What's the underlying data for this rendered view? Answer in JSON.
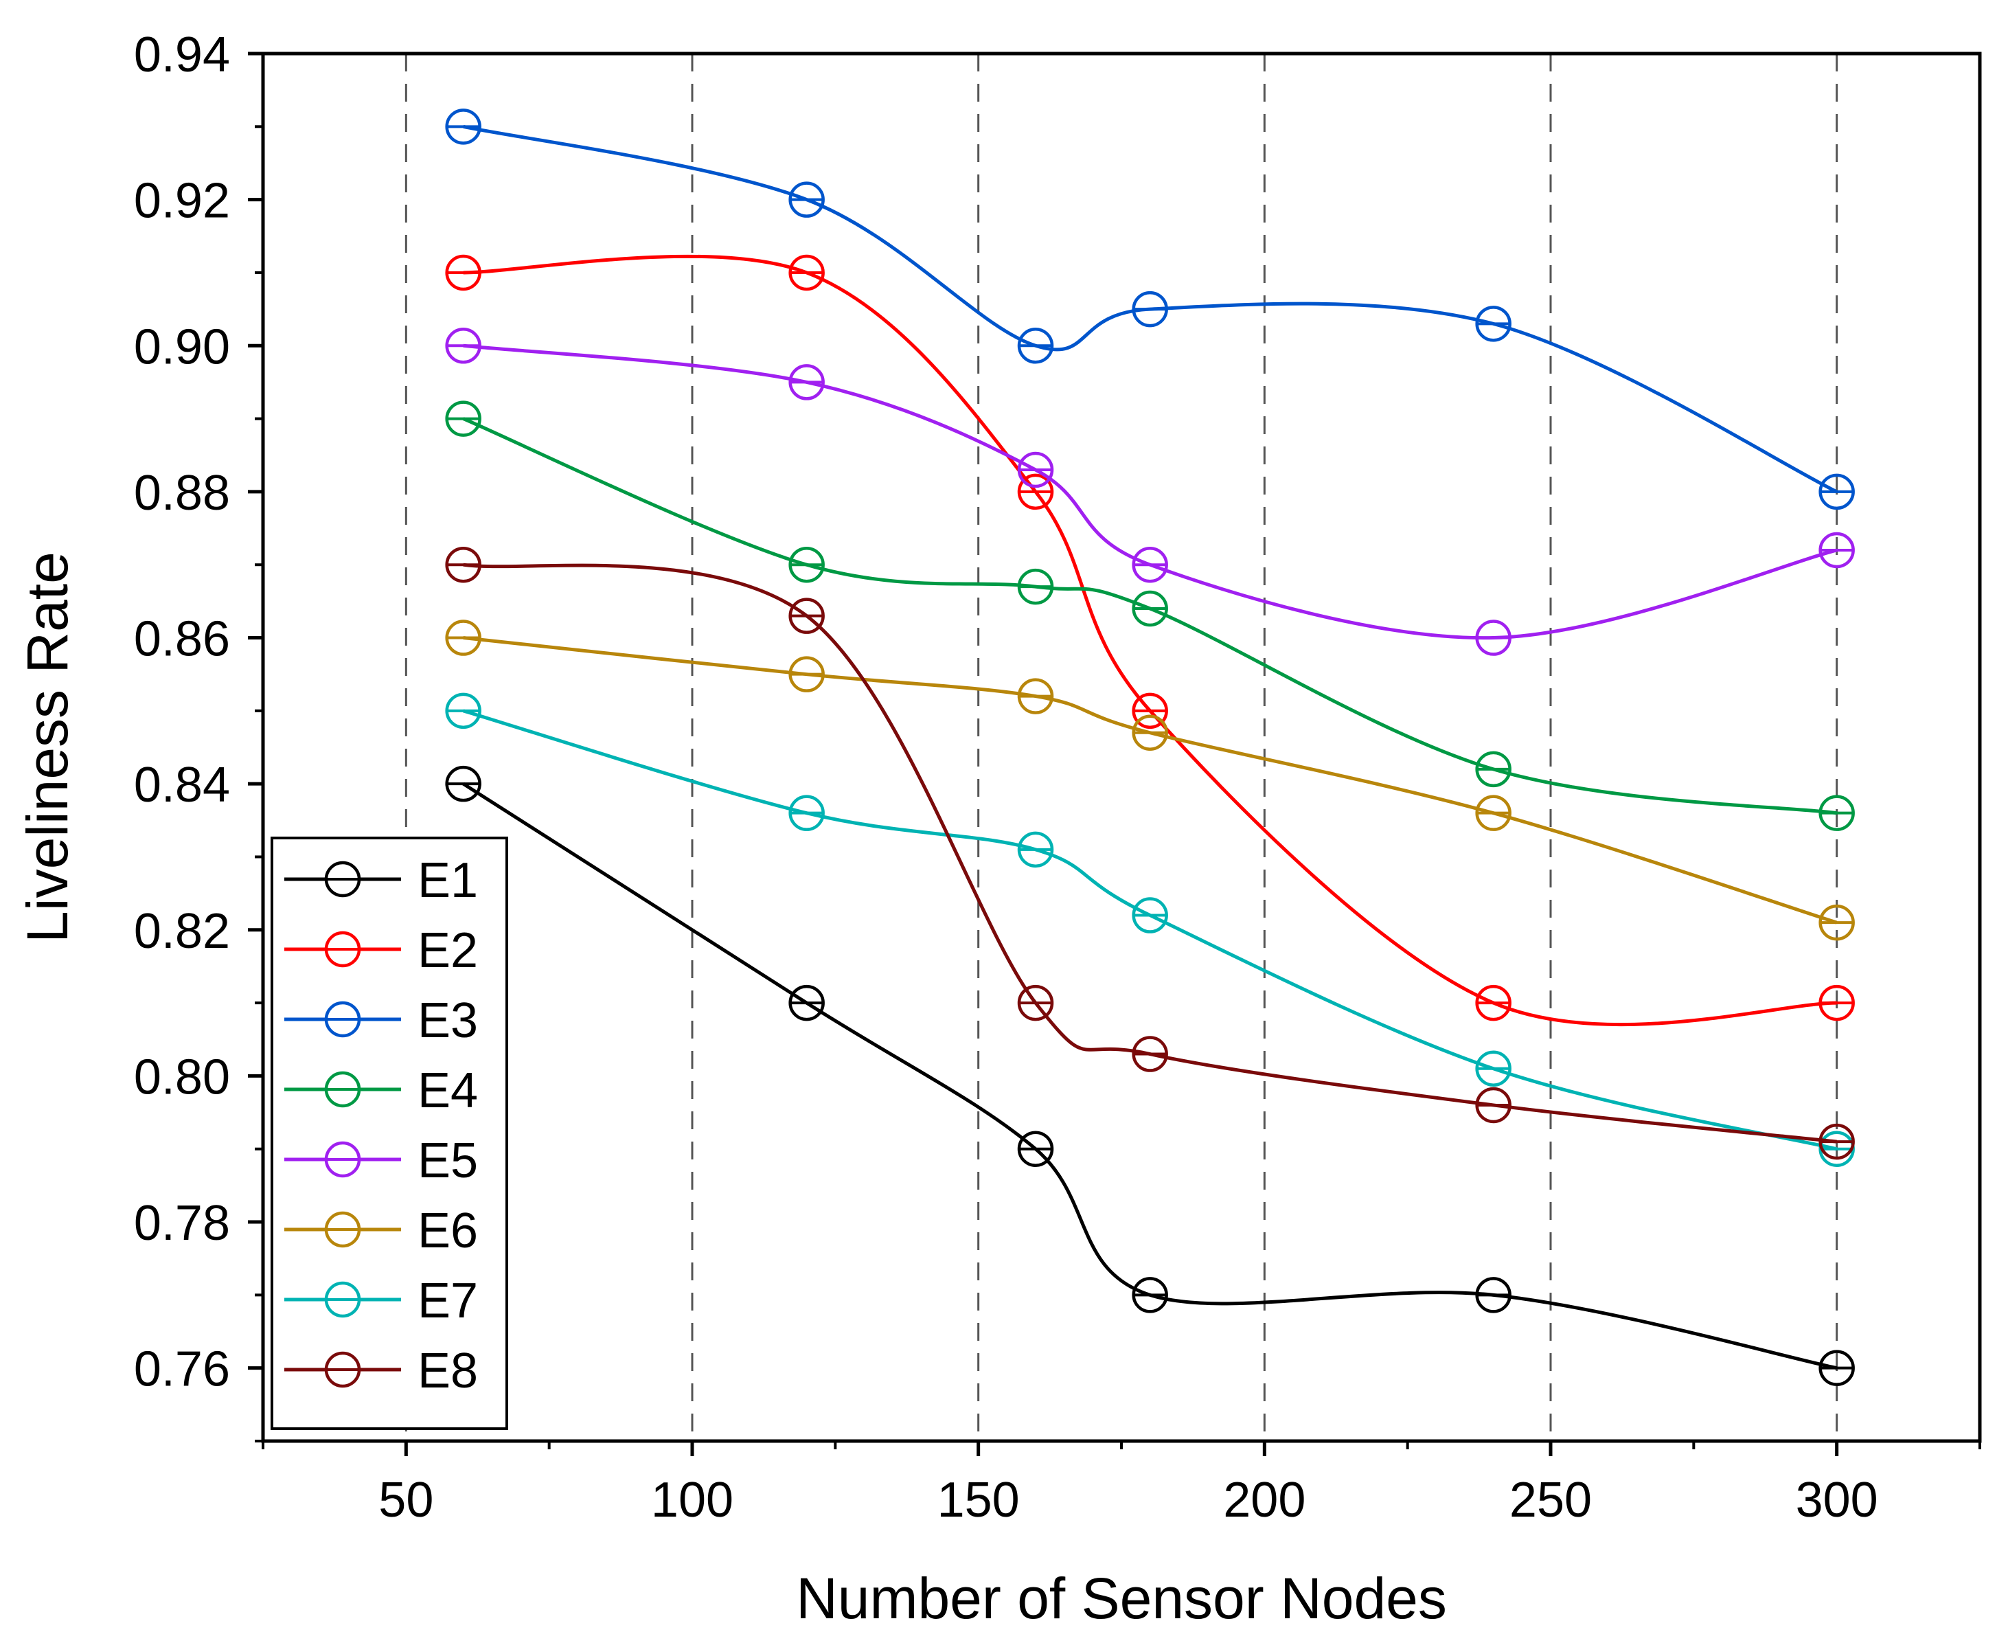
{
  "chart_data": {
    "type": "line",
    "title": "",
    "xlabel": "Number of Sensor Nodes",
    "ylabel": "Liveliness Rate",
    "xlim": [
      25,
      325
    ],
    "ylim": [
      0.75,
      0.94
    ],
    "xticks": [
      50,
      100,
      150,
      200,
      250,
      300
    ],
    "xtick_labels": [
      "50",
      "100",
      "150",
      "200",
      "250",
      "300"
    ],
    "yticks": [
      0.76,
      0.78,
      0.8,
      0.82,
      0.84,
      0.86,
      0.88,
      0.9,
      0.92,
      0.94
    ],
    "ytick_labels": [
      "0.76",
      "0.78",
      "0.80",
      "0.82",
      "0.84",
      "0.86",
      "0.88",
      "0.90",
      "0.92",
      "0.94"
    ],
    "vertical_gridlines": [
      50,
      100,
      150,
      200,
      250,
      300
    ],
    "grid": "vertical dashed",
    "legend_position": "bottom-left",
    "x": [
      60,
      120,
      160,
      180,
      240,
      300
    ],
    "series": [
      {
        "name": "E1",
        "color": "#000000",
        "values": [
          0.84,
          0.81,
          0.79,
          0.77,
          0.77,
          0.76
        ]
      },
      {
        "name": "E2",
        "color": "#ff0000",
        "values": [
          0.91,
          0.91,
          0.88,
          0.85,
          0.81,
          0.81
        ]
      },
      {
        "name": "E3",
        "color": "#0055cc",
        "values": [
          0.93,
          0.92,
          0.9,
          0.905,
          0.903,
          0.88
        ]
      },
      {
        "name": "E4",
        "color": "#009944",
        "values": [
          0.89,
          0.87,
          0.867,
          0.864,
          0.842,
          0.836
        ]
      },
      {
        "name": "E5",
        "color": "#a020f0",
        "values": [
          0.9,
          0.895,
          0.883,
          0.87,
          0.86,
          0.872
        ]
      },
      {
        "name": "E6",
        "color": "#b8860b",
        "values": [
          0.86,
          0.855,
          0.852,
          0.847,
          0.836,
          0.821
        ]
      },
      {
        "name": "E7",
        "color": "#00b3b3",
        "values": [
          0.85,
          0.836,
          0.831,
          0.822,
          0.801,
          0.79
        ]
      },
      {
        "name": "E8",
        "color": "#7a0a0a",
        "values": [
          0.87,
          0.863,
          0.81,
          0.803,
          0.796,
          0.791
        ]
      }
    ]
  }
}
